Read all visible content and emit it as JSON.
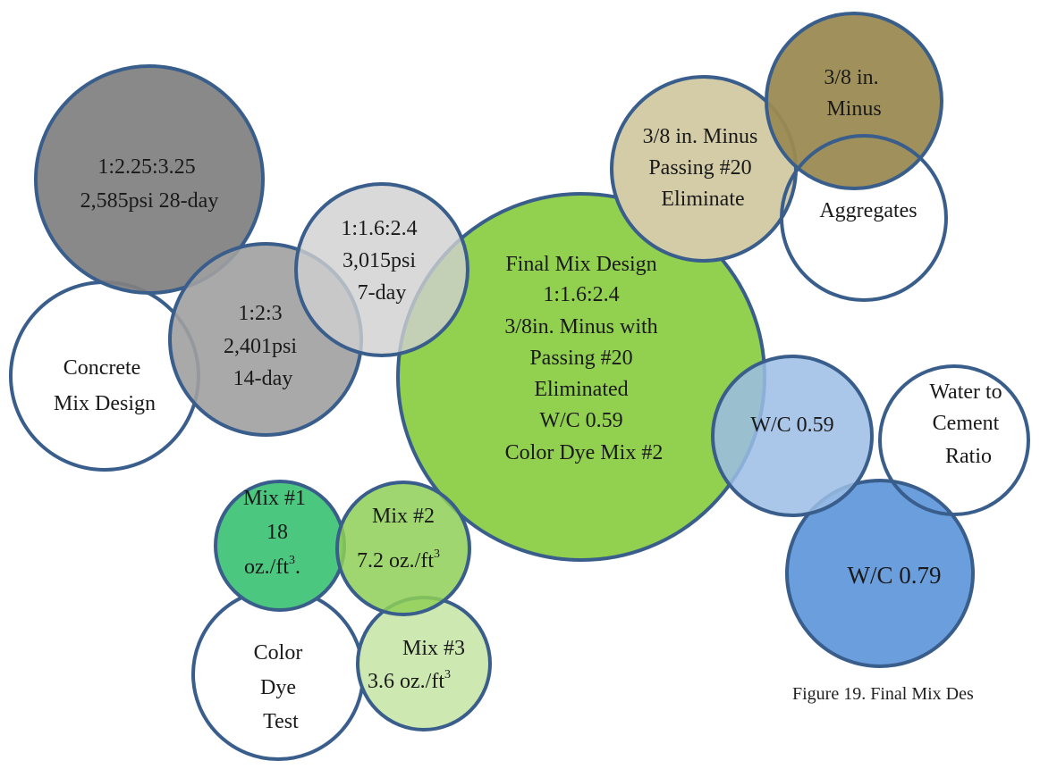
{
  "colors": {
    "outline": "#3a5e8c",
    "white": "#ffffff",
    "gray_dark": "#808080",
    "gray_mid": "#a0a0a0",
    "gray_light": "#d0d0d0",
    "green_final": "#92d050",
    "green_mix1": "#4cc77f",
    "green_mix2": "#8ecf56",
    "green_mix3": "#cde8b0",
    "tan": "#d3cca7",
    "olive": "#9b8a52",
    "blue_light": "#9bbde5",
    "blue_dark": "#6a9edd"
  },
  "circles": {
    "concrete_mix_design": {
      "lines": [
        "Concrete",
        "Mix Design"
      ]
    },
    "mix_28day": {
      "lines": [
        "1:2.25:3.25",
        "2,585psi 28-day"
      ]
    },
    "mix_14day": {
      "lines": [
        "1:2:3",
        "2,401psi",
        "14-day"
      ]
    },
    "mix_7day": {
      "lines": [
        "1:1.6:2.4",
        "3,015psi",
        "7-day"
      ]
    },
    "final_mix_design": {
      "lines": [
        "Final Mix Design",
        "1:1.6:2.4",
        "3/8in. Minus with",
        "Passing #20",
        "Eliminated",
        "W/C 0.59",
        "Color Dye Mix #2"
      ]
    },
    "aggregates": {
      "lines": [
        "Aggregates"
      ]
    },
    "passing_20_eliminate": {
      "lines": [
        "3/8 in. Minus",
        "Passing #20",
        "Eliminate"
      ]
    },
    "minus_3_8": {
      "lines": [
        "3/8 in.",
        "Minus"
      ]
    },
    "water_cement_ratio": {
      "lines": [
        "Water to",
        "Cement",
        "Ratio"
      ]
    },
    "wc_059": {
      "lines": [
        "W/C 0.59"
      ]
    },
    "wc_079": {
      "lines": [
        "W/C 0.79"
      ]
    },
    "color_dye_test": {
      "lines": [
        "Color",
        "Dye",
        "Test"
      ]
    },
    "mix1": {
      "lines": [
        "Mix #1",
        "18",
        "oz./ft",
        "3",
        "."
      ]
    },
    "mix2": {
      "lines": [
        "Mix #2",
        "7.2 oz./ft",
        "3"
      ]
    },
    "mix3": {
      "lines": [
        "Mix #3",
        "3.6 oz./ft",
        "3"
      ]
    }
  },
  "caption": "Figure 19. Final Mix Des"
}
